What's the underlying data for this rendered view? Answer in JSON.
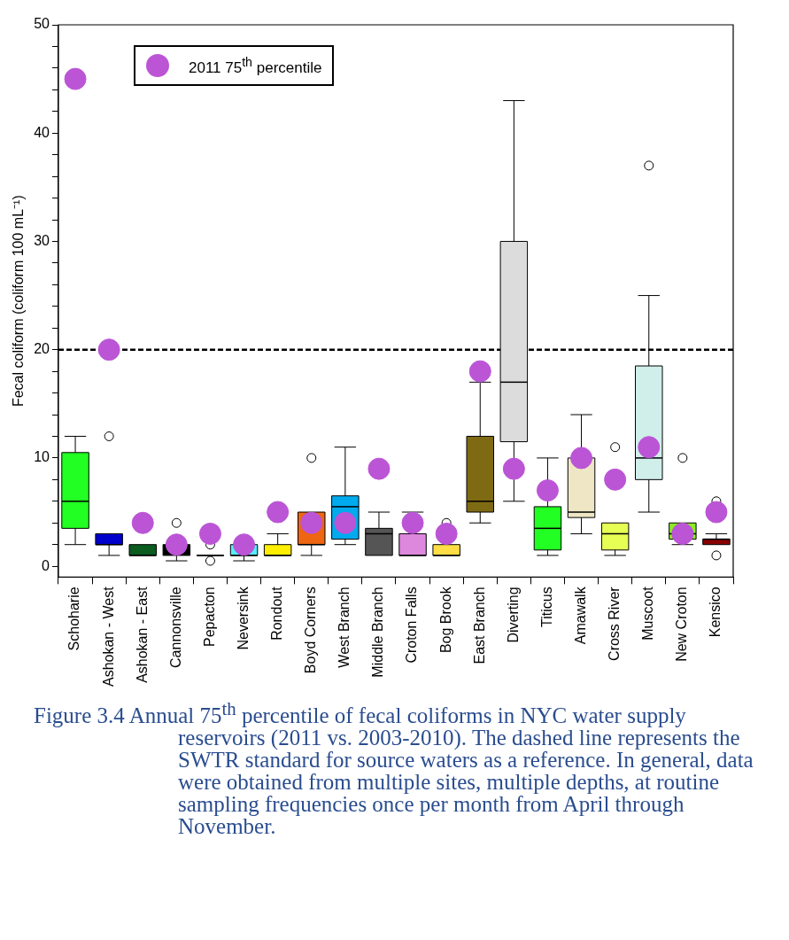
{
  "chart_data": {
    "type": "box",
    "ylabel": "Fecal coliform (coliform 100 mL⁻¹)",
    "categories": [
      "Schoharie",
      "Ashokan - West",
      "Ashokan - East",
      "Cannonsville",
      "Pepacton",
      "Neversink",
      "Rondout",
      "Boyd Corners",
      "West Branch",
      "Middle Branch",
      "Croton Falls",
      "Bog Brook",
      "East Branch",
      "Diverting",
      "Titicus",
      "Amawalk",
      "Cross River",
      "Muscoot",
      "New Croton",
      "Kensico"
    ],
    "boxes": [
      {
        "low": 2,
        "q1": 3.5,
        "median": 6,
        "q3": 10.5,
        "high": 12
      },
      {
        "low": 1,
        "q1": 2,
        "median": 2,
        "q3": 3,
        "high": 3,
        "outliers": [
          12
        ]
      },
      {
        "low": 1,
        "q1": 1,
        "median": 1,
        "q3": 2,
        "high": 2
      },
      {
        "low": 0.5,
        "q1": 1,
        "median": 1.5,
        "q3": 2,
        "high": 2,
        "outliers": [
          4
        ]
      },
      {
        "low": 1,
        "q1": 1,
        "median": 1,
        "q3": 1,
        "high": 1,
        "outliers": [
          2,
          0.5
        ]
      },
      {
        "low": 0.5,
        "q1": 1,
        "median": 1,
        "q3": 2,
        "high": 2
      },
      {
        "low": 1,
        "q1": 1,
        "median": 1,
        "q3": 2,
        "high": 3
      },
      {
        "low": 1,
        "q1": 2,
        "median": 2,
        "q3": 5,
        "high": 5,
        "outliers": [
          10
        ]
      },
      {
        "low": 2,
        "q1": 2.5,
        "median": 5.5,
        "q3": 6.5,
        "high": 11
      },
      {
        "low": 1,
        "q1": 1,
        "median": 3,
        "q3": 3.5,
        "high": 5
      },
      {
        "low": 1,
        "q1": 1,
        "median": 1,
        "q3": 3,
        "high": 5
      },
      {
        "low": 1,
        "q1": 1,
        "median": 1,
        "q3": 2,
        "high": 2,
        "outliers": [
          4
        ]
      },
      {
        "low": 4,
        "q1": 5,
        "median": 6,
        "q3": 12,
        "high": 17
      },
      {
        "low": 6,
        "q1": 11.5,
        "median": 17,
        "q3": 30,
        "high": 43
      },
      {
        "low": 1,
        "q1": 1.5,
        "median": 3.5,
        "q3": 5.5,
        "high": 10
      },
      {
        "low": 3,
        "q1": 4.5,
        "median": 5,
        "q3": 10,
        "high": 14
      },
      {
        "low": 1,
        "q1": 1.5,
        "median": 3,
        "q3": 4,
        "high": 4,
        "outliers": [
          11
        ]
      },
      {
        "low": 5,
        "q1": 8,
        "median": 10,
        "q3": 18.5,
        "high": 25,
        "outliers": [
          37
        ]
      },
      {
        "low": 2,
        "q1": 2.5,
        "median": 3,
        "q3": 4,
        "high": 4,
        "outliers": [
          10
        ]
      },
      {
        "low": 2,
        "q1": 2,
        "median": 2.5,
        "q3": 2.5,
        "high": 3,
        "outliers": [
          6,
          1
        ]
      }
    ],
    "colors": [
      "#22ff22",
      "#0000cc",
      "#0a5c1f",
      "#000000",
      "#000000",
      "#55eeff",
      "#ffee00",
      "#ee6611",
      "#00aaee",
      "#555555",
      "#dd88dd",
      "#ffdd44",
      "#7f6a14",
      "#dcdcdc",
      "#22ff22",
      "#eee6c4",
      "#e6ff55",
      "#d0eeea",
      "#88ee22",
      "#880000"
    ],
    "series": [
      {
        "type": "scatter",
        "name": "2011 75$^{th}$ percentile",
        "color": "#bb55d6",
        "x": [
          "Schoharie",
          "Ashokan - West",
          "Ashokan - East",
          "Cannonsville",
          "Pepacton",
          "Neversink",
          "Rondout",
          "Boyd Corners",
          "West Branch",
          "Middle Branch",
          "Croton Falls",
          "Bog Brook",
          "East Branch",
          "Diverting",
          "Titicus",
          "Amawalk",
          "Cross River",
          "Muscoot",
          "New Croton",
          "Kensico"
        ],
        "values": [
          45,
          20,
          4,
          2,
          3,
          2,
          5,
          4,
          4,
          9,
          4,
          3,
          18,
          9,
          7,
          10,
          8,
          11,
          3,
          5
        ]
      }
    ],
    "ylim": [
      -1,
      50
    ],
    "yticks": [
      0,
      {
        "value": 2,
        "label": null
      },
      {
        "value": 4,
        "label": null
      },
      {
        "value": 6,
        "label": null
      },
      {
        "value": 8,
        "label": null
      },
      10,
      {
        "value": 12,
        "label": null
      },
      {
        "value": 14,
        "label": null
      },
      {
        "value": 16,
        "label": null
      },
      {
        "value": 18,
        "label": null
      },
      20,
      {
        "value": 22,
        "label": null
      },
      {
        "value": 24,
        "label": null
      },
      {
        "value": 26,
        "label": null
      },
      {
        "value": 28,
        "label": null
      },
      30,
      {
        "value": 32,
        "label": null
      },
      {
        "value": 34,
        "label": null
      },
      {
        "value": 36,
        "label": null
      },
      {
        "value": 38,
        "label": null
      },
      40,
      {
        "value": 42,
        "label": null
      },
      {
        "value": 44,
        "label": null
      },
      {
        "value": 46,
        "label": null
      },
      {
        "value": 48,
        "label": null
      },
      50
    ],
    "ref_lines": [
      {
        "axis": "y",
        "value": 20,
        "color": "#000000",
        "line_style": "dashed"
      }
    ],
    "grid": false,
    "legend": "top left",
    "marker": "circle",
    "annotations": [
      "Figure 3.4  Annual 75$^{th}$ percentile of fecal coliforms in NYC water supply reservoirs (2011 vs. 2003-2010). The dashed line represents the SWTR standard for source waters as a reference. In general, data were obtained from multiple sites, multiple depths, at routine sampling frequencies once per month from April through November."
    ]
  }
}
